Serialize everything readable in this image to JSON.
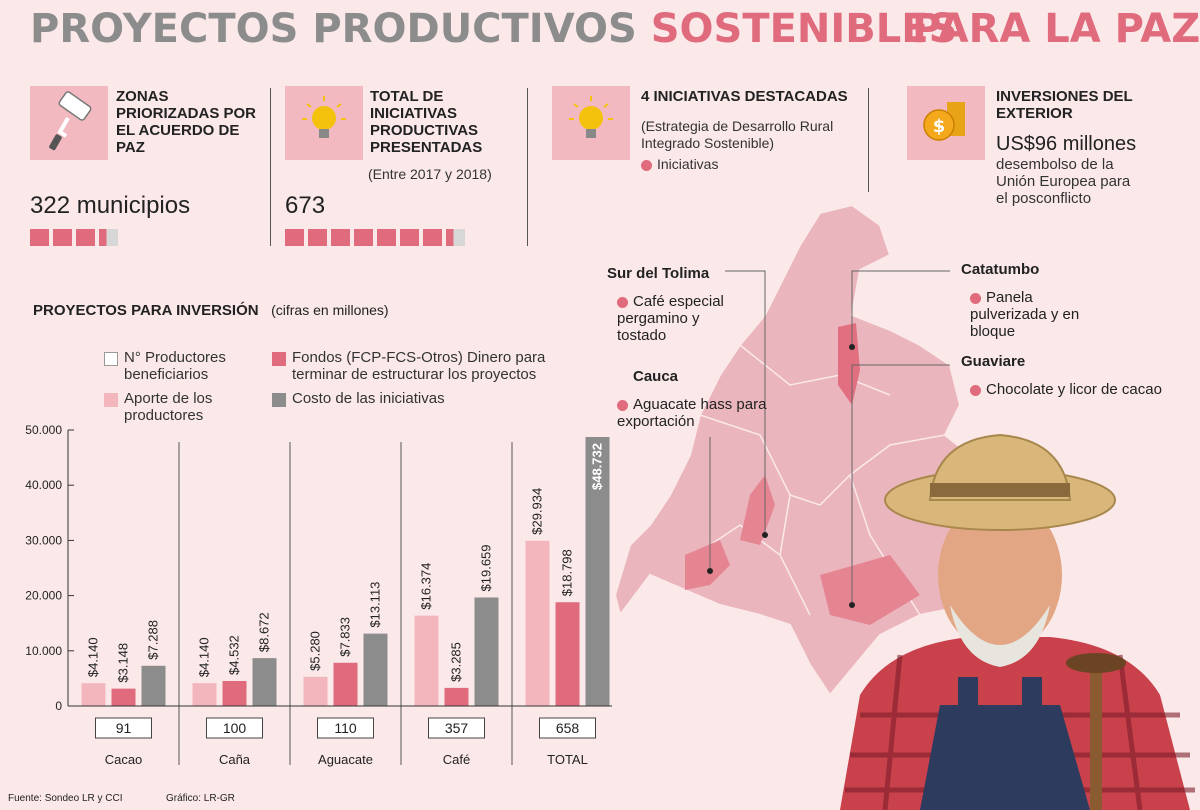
{
  "title": {
    "part1": "PROYECTOS PRODUCTIVOS",
    "part2": "SOSTENIBLES",
    "right": "PARA LA PAZ"
  },
  "colors": {
    "accent": "#e06b7c",
    "light_pink": "#f4b6bd",
    "gray": "#8c8c8c",
    "background": "#fbe9ea"
  },
  "stats": {
    "zonas": {
      "icon": "paint-roller-icon",
      "heading": "ZONAS PRIORIZADAS POR EL ACUERDO DE PAZ",
      "value": "322 municipios",
      "blocks_filled": 3.4
    },
    "iniciativas": {
      "icon": "light-bulb-icon",
      "heading": "TOTAL DE INICIATIVAS PRODUCTIVAS PRESENTADAS",
      "period": "(Entre 2017 y 2018)",
      "value": "673",
      "blocks_filled": 7.2
    },
    "destacadas": {
      "icon": "light-bulb-icon",
      "heading": "4 INICIATIVAS DESTACADAS",
      "desc": "(Estrategia de Desarrollo Rural Integrado Sostenible)",
      "legend": "Iniciativas"
    },
    "inversiones": {
      "icon": "coins-icon",
      "heading": "INVERSIONES DEL EXTERIOR",
      "value": "US$96 millones",
      "desc": "desembolso de la Unión Europea para el posconflicto"
    }
  },
  "map": {
    "regions": [
      {
        "name": "Sur del Tolima",
        "desc": "Café especial pergamino y tostado"
      },
      {
        "name": "Cauca",
        "desc": "Aguacate hass para exportación"
      },
      {
        "name": "Catatumbo",
        "desc": "Panela pulverizada y en bloque"
      },
      {
        "name": "Guaviare",
        "desc": "Chocolate y licor de cacao"
      }
    ]
  },
  "chart_section": {
    "heading": "PROYECTOS PARA INVERSIÓN",
    "note": "(cifras en millones)"
  },
  "chart_data": {
    "type": "bar",
    "categories": [
      "Cacao",
      "Caña",
      "Aguacate",
      "Café",
      "TOTAL"
    ],
    "producers": [
      "91",
      "100",
      "110",
      "357",
      "658"
    ],
    "ylim": [
      0,
      50000
    ],
    "yticks": [
      "0",
      "10.000",
      "20.000",
      "30.000",
      "40.000",
      "50.000"
    ],
    "legend": {
      "producers": "N° Productores beneficiarios",
      "fondos": "Fondos (FCP-FCS-Otros) Dinero para terminar de estructurar los proyectos",
      "aporte": "Aporte de los productores",
      "costo": "Costo de las iniciativas"
    },
    "series": [
      {
        "name": "Aporte de los productores",
        "color": "#f4b6bd",
        "values": [
          4140,
          4140,
          5280,
          16374,
          29934
        ],
        "labels": [
          "$4.140",
          "$4.140",
          "$5.280",
          "$16.374",
          "$29.934"
        ]
      },
      {
        "name": "Fondos (FCP-FCS-Otros) Dinero para terminar de estructurar los proyectos",
        "color": "#e06b7c",
        "values": [
          3148,
          4532,
          7833,
          3285,
          18798
        ],
        "labels": [
          "$3.148",
          "$4.532",
          "$7.833",
          "$3.285",
          "$18.798"
        ]
      },
      {
        "name": "Costo de las iniciativas",
        "color": "#8c8c8c",
        "values": [
          7288,
          8672,
          13113,
          19659,
          48732
        ],
        "labels": [
          "$7.288",
          "$8.672",
          "$13.113",
          "$19.659",
          "$48.732"
        ]
      }
    ]
  },
  "footer": {
    "source": "Fuente: Sondeo LR y CCI",
    "graphic": "Gráfico: LR-GR"
  }
}
